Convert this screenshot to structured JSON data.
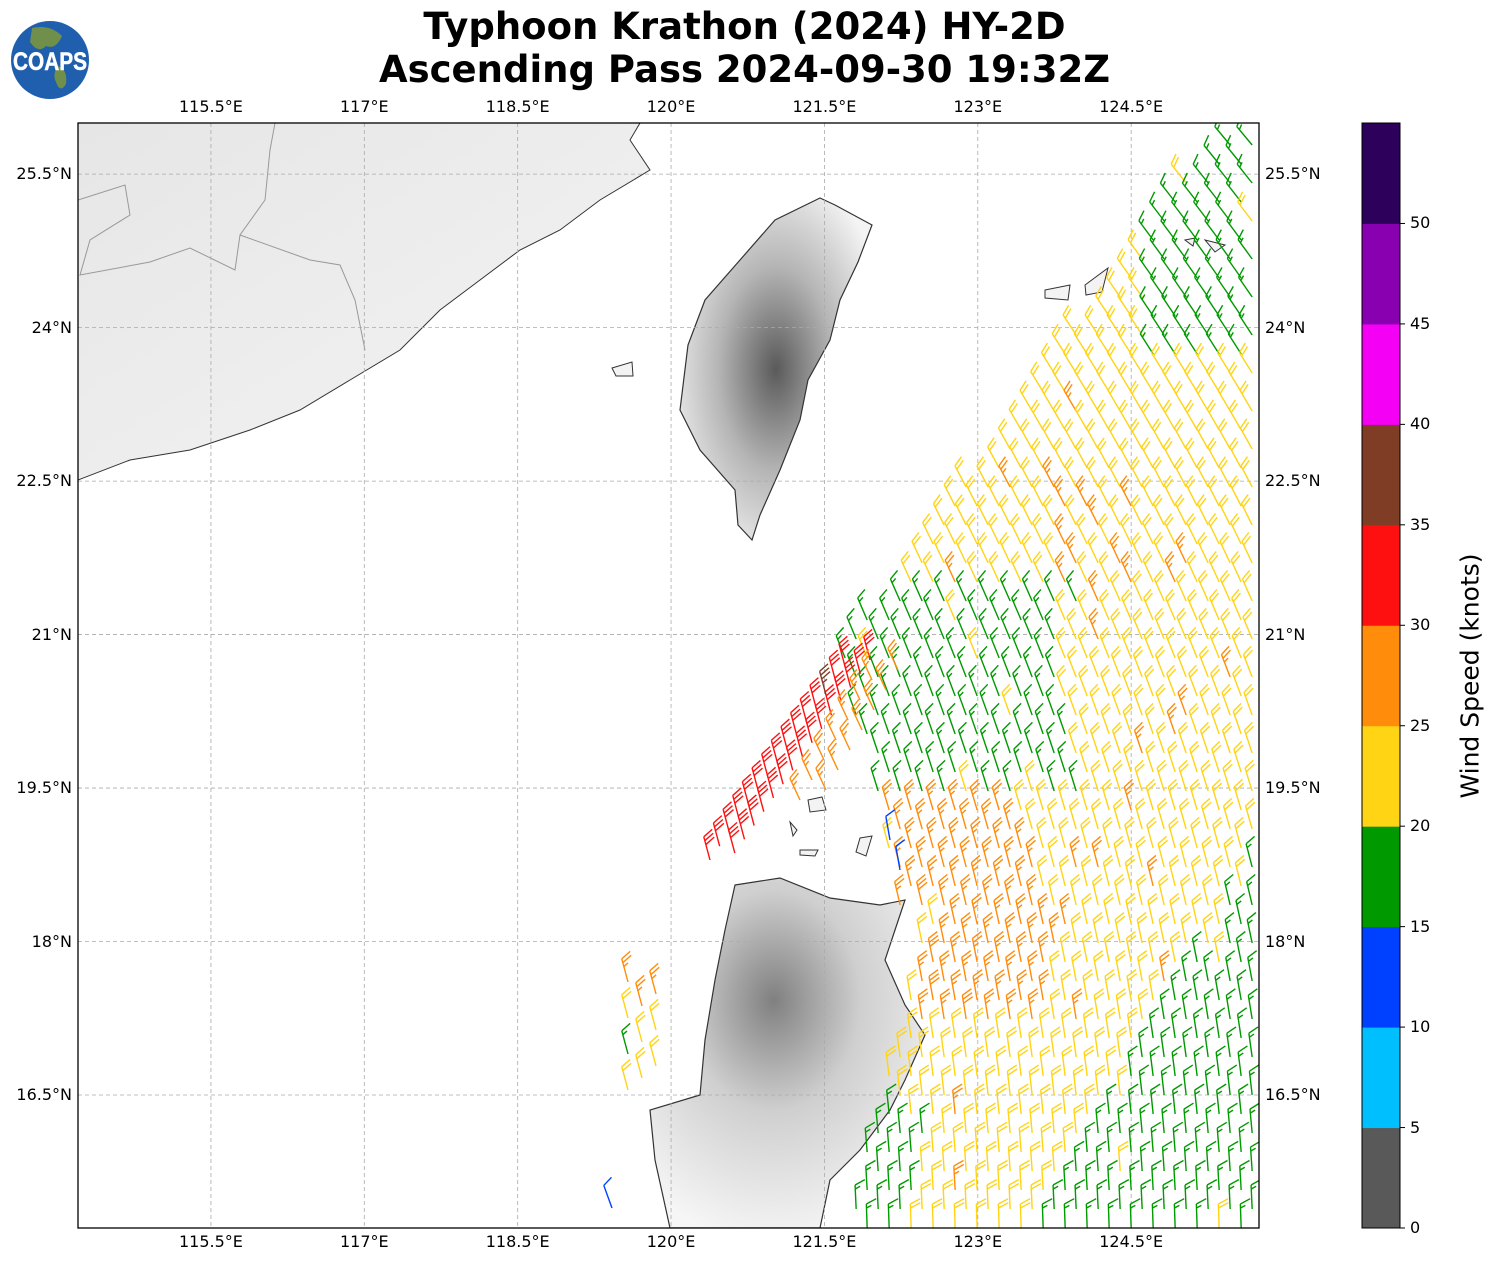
{
  "title": {
    "line1": "Typhoon Krathon (2024) HY-2D",
    "line2": "Ascending Pass 2024-09-30 19:32Z"
  },
  "logo": {
    "text": "COAPS"
  },
  "axes": {
    "lon_ticks": [
      {
        "value": 115.5,
        "label": "115.5°E"
      },
      {
        "value": 117,
        "label": "117°E"
      },
      {
        "value": 118.5,
        "label": "118.5°E"
      },
      {
        "value": 120,
        "label": "120°E"
      },
      {
        "value": 121.5,
        "label": "121.5°E"
      },
      {
        "value": 123,
        "label": "123°E"
      },
      {
        "value": 124.5,
        "label": "124.5°E"
      }
    ],
    "lat_ticks": [
      {
        "value": 25.5,
        "label": "25.5°N"
      },
      {
        "value": 24,
        "label": "24°N"
      },
      {
        "value": 22.5,
        "label": "22.5°N"
      },
      {
        "value": 21,
        "label": "21°N"
      },
      {
        "value": 19.5,
        "label": "19.5°N"
      },
      {
        "value": 18,
        "label": "18°N"
      },
      {
        "value": 16.5,
        "label": "16.5°N"
      }
    ],
    "lon_range": [
      114.2,
      125.75
    ],
    "lat_range": [
      15.2,
      26.0
    ]
  },
  "colorbar": {
    "label": "Wind Speed (knots)",
    "ticks": [
      "0",
      "5",
      "10",
      "15",
      "20",
      "25",
      "30",
      "35",
      "40",
      "45",
      "50"
    ],
    "range": [
      0,
      55
    ],
    "bins": [
      {
        "from": 0,
        "to": 5,
        "color": "#595959"
      },
      {
        "from": 5,
        "to": 10,
        "color": "#00bfff"
      },
      {
        "from": 10,
        "to": 15,
        "color": "#0040ff"
      },
      {
        "from": 15,
        "to": 20,
        "color": "#009900"
      },
      {
        "from": 20,
        "to": 25,
        "color": "#ffd414"
      },
      {
        "from": 25,
        "to": 30,
        "color": "#ff8c0a"
      },
      {
        "from": 30,
        "to": 35,
        "color": "#ff1010"
      },
      {
        "from": 35,
        "to": 40,
        "color": "#803d26"
      },
      {
        "from": 40,
        "to": 45,
        "color": "#f400f4"
      },
      {
        "from": 45,
        "to": 50,
        "color": "#8800b0"
      },
      {
        "from": 50,
        "to": 55,
        "color": "#2d005c"
      }
    ]
  }
}
